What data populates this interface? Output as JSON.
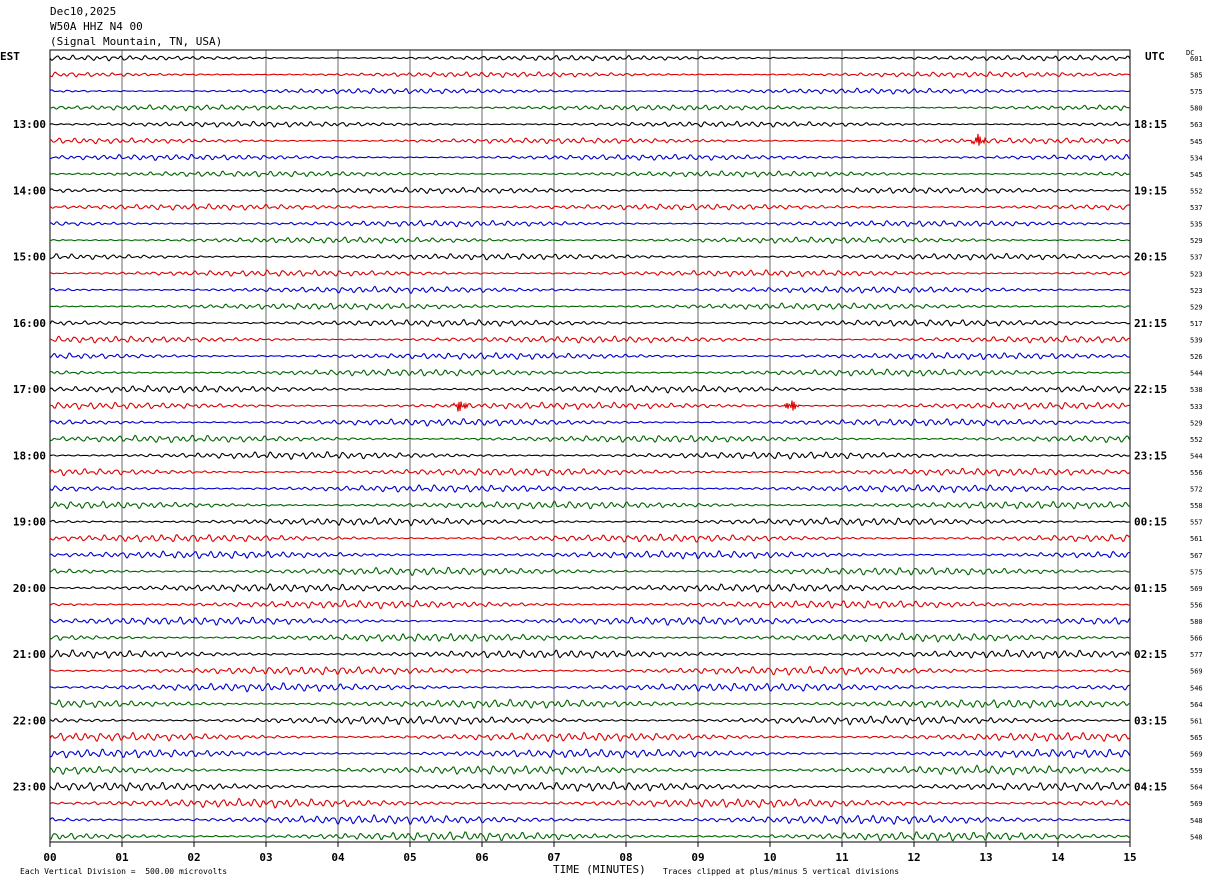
{
  "header": {
    "date": "Dec10,2025",
    "station": "W50A HHZ N4 00",
    "location": "(Signal Mountain, TN, USA)"
  },
  "left_axis_label": "EST",
  "right_axis_label": "UTC",
  "dc_label": "DC",
  "footer": {
    "scale_note": "Each Vertical Division =  500.00 microvolts",
    "clip_note": "Traces clipped at plus/minus 5 vertical divisions"
  },
  "colors": {
    "trace_cycle": [
      "#000000",
      "#dd0000",
      "#0000cc",
      "#006600"
    ],
    "grid": "#000000"
  },
  "chart_data": {
    "type": "line",
    "title": "",
    "xlabel": "TIME (MINUTES)",
    "xlim": [
      0,
      15
    ],
    "x_ticks": [
      "00",
      "01",
      "02",
      "03",
      "04",
      "05",
      "06",
      "07",
      "08",
      "09",
      "10",
      "11",
      "12",
      "13",
      "14",
      "15"
    ],
    "rows_per_hour": 4,
    "row_count": 48,
    "est_hour_labels": [
      "13:00",
      "14:00",
      "15:00",
      "16:00",
      "17:00",
      "18:00",
      "19:00",
      "20:00",
      "21:00",
      "22:00",
      "23:00"
    ],
    "utc_hour_labels": [
      "18:15",
      "19:15",
      "20:15",
      "21:15",
      "22:15",
      "23:15",
      "00:15",
      "01:15",
      "02:15",
      "03:15",
      "04:15"
    ],
    "first_labeled_row": 4,
    "dc_offsets": [
      601,
      585,
      575,
      580,
      563,
      545,
      534,
      545,
      552,
      537,
      535,
      529,
      537,
      523,
      523,
      529,
      517,
      539,
      526,
      544,
      538,
      533,
      529,
      552,
      544,
      556,
      572,
      558,
      557,
      561,
      567,
      575,
      569,
      556,
      580,
      566,
      577,
      569,
      546,
      564,
      561,
      565,
      569,
      559,
      564,
      569,
      548,
      548
    ],
    "events": [
      {
        "row": 5,
        "minute": 12.9,
        "description": "spike"
      },
      {
        "row": 21,
        "minute": 5.7,
        "description": "burst"
      },
      {
        "row": 21,
        "minute": 10.3,
        "description": "burst"
      }
    ]
  }
}
